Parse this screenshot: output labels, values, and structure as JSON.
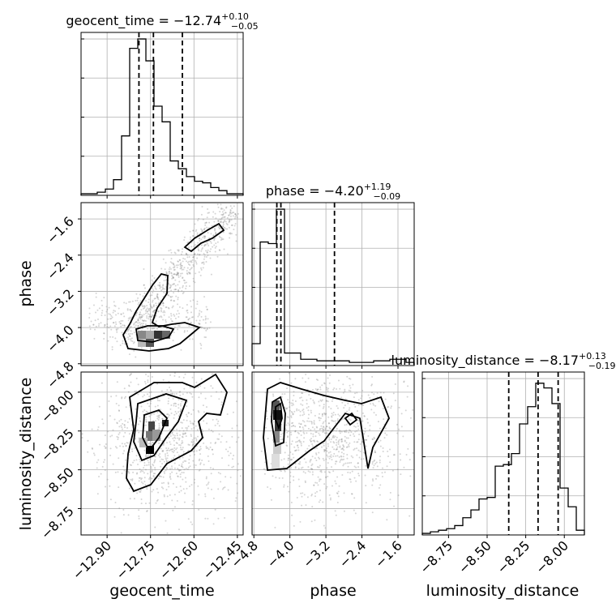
{
  "chart_data": {
    "type": "corner",
    "grid": true,
    "parameters": [
      "geocent_time",
      "phase",
      "luminosity_distance"
    ],
    "titles": {
      "geocent_time": {
        "prefix": "geocent_time = ",
        "value": "−12.74",
        "plus": "+0.10",
        "minus": "−0.05"
      },
      "phase": {
        "prefix": "phase = ",
        "value": "−4.20",
        "plus": "+1.19",
        "minus": "−0.09"
      },
      "luminosity_distance": {
        "prefix": "luminosity_distance = ",
        "value": "−8.17",
        "plus": "+0.13",
        "minus": "−0.19"
      }
    },
    "axis_labels": {
      "x": [
        "geocent_time",
        "phase",
        "luminosity_distance"
      ],
      "y": [
        "phase",
        "luminosity_distance"
      ]
    },
    "ranges": {
      "geocent_time": [
        -12.99,
        -12.43
      ],
      "phase": [
        -4.84,
        -1.24
      ],
      "luminosity_distance": [
        -8.92,
        -7.87
      ]
    },
    "ticks": {
      "geocent_time": {
        "values": [
          -12.9,
          -12.75,
          -12.6,
          -12.45
        ],
        "labels": [
          "−12.90",
          "−12.75",
          "−12.60",
          "−12.45"
        ]
      },
      "phase": {
        "values": [
          -4.8,
          -4.0,
          -3.2,
          -2.4,
          -1.6
        ],
        "labels": [
          "−4.8",
          "−4.0",
          "−3.2",
          "−2.4",
          "−1.6"
        ]
      },
      "luminosity_distance": {
        "values": [
          -8.75,
          -8.5,
          -8.25,
          -8.0
        ],
        "labels": [
          "−8.75",
          "−8.50",
          "−8.25",
          "−8.00"
        ]
      }
    },
    "quantile_lines": {
      "geocent_time": [
        -12.79,
        -12.74,
        -12.64
      ],
      "phase": [
        -4.29,
        -4.2,
        -3.01
      ],
      "luminosity_distance": [
        -8.36,
        -8.17,
        -8.04
      ]
    },
    "histograms": {
      "geocent_time": [
        1,
        1,
        2,
        4,
        10,
        38,
        94,
        100,
        86,
        57,
        47,
        22,
        17,
        12,
        9,
        8,
        5,
        3,
        1,
        1
      ],
      "phase": [
        14,
        79,
        78,
        100,
        8,
        8,
        4,
        4,
        3,
        3,
        3,
        3,
        2,
        2,
        2,
        3,
        3,
        4,
        4,
        2
      ],
      "luminosity_distance": [
        1,
        2,
        3,
        4,
        6,
        11,
        16,
        23,
        24,
        44,
        45,
        52,
        71,
        82,
        97,
        94,
        84,
        30,
        18,
        3
      ]
    }
  }
}
